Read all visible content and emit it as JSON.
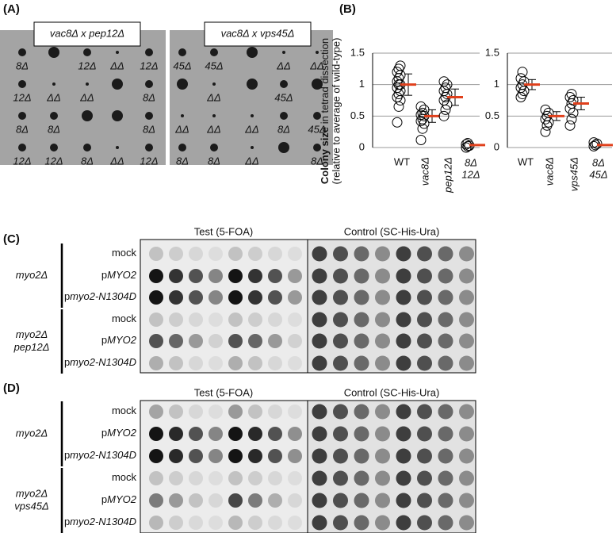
{
  "panels": {
    "a": {
      "label": "(A)",
      "plates": [
        {
          "title": "vac8Δ x pep12Δ",
          "rows": [
            [
              "8Δ",
              null,
              "12Δ",
              "ΔΔ",
              "12Δ"
            ],
            [
              "12Δ",
              "ΔΔ",
              "ΔΔ",
              null,
              "8Δ"
            ],
            [
              "8Δ",
              "8Δ",
              null,
              null,
              "8Δ"
            ],
            [
              "12Δ",
              "12Δ",
              "8Δ",
              "ΔΔ",
              "12Δ"
            ]
          ]
        },
        {
          "title": "vac8Δ x vps45Δ",
          "rows": [
            [
              "45Δ",
              "45Δ",
              null,
              "ΔΔ",
              "ΔΔ"
            ],
            [
              null,
              "ΔΔ",
              null,
              "45Δ",
              null
            ],
            [
              "ΔΔ",
              "ΔΔ",
              "ΔΔ",
              "8Δ",
              "45Δ"
            ],
            [
              "8Δ",
              "8Δ",
              "ΔΔ",
              null,
              "8Δ"
            ]
          ]
        }
      ]
    },
    "b": {
      "label": "(B)",
      "y_label_bold": "Colony size",
      "y_label_rest": " in tetrad dissection",
      "y_label_sub": "(relative to average of wild-type)",
      "ylim": [
        0,
        1.5
      ],
      "yticks": [
        0,
        0.5,
        1,
        1.5
      ],
      "plots": [
        {
          "categories": [
            [
              "WT"
            ],
            [
              "vac8Δ"
            ],
            [
              "pep12Δ"
            ],
            [
              "8Δ",
              "12Δ"
            ]
          ],
          "points": [
            [
              0.4,
              0.65,
              0.75,
              0.8,
              0.85,
              0.9,
              0.95,
              1.0,
              1.0,
              1.05,
              1.1,
              1.15,
              1.2,
              1.25,
              1.3
            ],
            [
              0.12,
              0.3,
              0.38,
              0.42,
              0.45,
              0.5,
              0.52,
              0.55,
              0.6,
              0.65
            ],
            [
              0.5,
              0.6,
              0.68,
              0.75,
              0.8,
              0.85,
              0.9,
              0.95,
              1.0,
              1.05
            ],
            [
              0,
              0.02,
              0.03,
              0.05,
              0.07
            ]
          ],
          "means": [
            1.0,
            0.5,
            0.8,
            0.04
          ],
          "errors": [
            0.17,
            0.1,
            0.13,
            null
          ]
        },
        {
          "categories": [
            [
              "WT"
            ],
            [
              "vac8Δ"
            ],
            [
              "vps45Δ"
            ],
            [
              "8Δ",
              "45Δ"
            ]
          ],
          "points": [
            [
              0.8,
              0.85,
              0.9,
              0.95,
              1.0,
              1.05,
              1.1,
              1.2
            ],
            [
              0.25,
              0.35,
              0.4,
              0.45,
              0.5,
              0.55,
              0.6
            ],
            [
              0.35,
              0.45,
              0.55,
              0.62,
              0.7,
              0.75,
              0.8,
              0.85
            ],
            [
              0.02,
              0.04,
              0.06,
              0.08
            ]
          ],
          "means": [
            1.0,
            0.5,
            0.7,
            0.04
          ],
          "errors": [
            0.08,
            0.07,
            0.1,
            null
          ]
        }
      ]
    },
    "c": {
      "label": "(C)",
      "headers": [
        "Test (5-FOA)",
        "Control (SC-His-Ura)"
      ],
      "groups": [
        {
          "name": [
            "myo2Δ"
          ],
          "rows": [
            {
              "plain": "mock"
            },
            {
              "plain": "p",
              "italic": "MYO2"
            },
            {
              "plain": "p",
              "italic": "myo2-N1304D"
            }
          ]
        },
        {
          "name": [
            "myo2Δ",
            "pep12Δ"
          ],
          "rows": [
            {
              "plain": "mock"
            },
            {
              "plain": "p",
              "italic": "MYO2"
            },
            {
              "plain": "p",
              "italic": "myo2-N1304D"
            }
          ]
        }
      ]
    },
    "d": {
      "label": "(D)",
      "headers": [
        "Test (5-FOA)",
        "Control (SC-His-Ura)"
      ],
      "groups": [
        {
          "name": [
            "myo2Δ"
          ],
          "rows": [
            {
              "plain": "mock"
            },
            {
              "plain": "p",
              "italic": "MYO2"
            },
            {
              "plain": "p",
              "italic": "myo2-N1304D"
            }
          ]
        },
        {
          "name": [
            "myo2Δ",
            "vps45Δ"
          ],
          "rows": [
            {
              "plain": "mock"
            },
            {
              "plain": "p",
              "italic": "MYO2"
            },
            {
              "plain": "p",
              "italic": "myo2-N1304D"
            }
          ]
        }
      ]
    }
  }
}
